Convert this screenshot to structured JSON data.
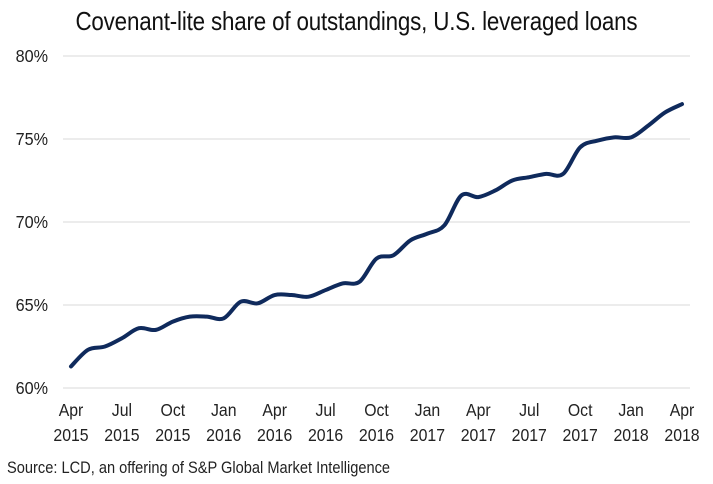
{
  "chart_data": {
    "type": "line",
    "title": "Covenant-lite share of outstandings, U.S. leveraged loans",
    "xlabel": "",
    "ylabel": "",
    "source": "Source: LCD, an offering of S&P Global Market Intelligence",
    "ylim": [
      60,
      80
    ],
    "yticks": [
      60,
      65,
      70,
      75,
      80
    ],
    "ytick_labels": [
      "60%",
      "65%",
      "70%",
      "75%",
      "80%"
    ],
    "grid": true,
    "legend": "none",
    "x_tick_labels": [
      [
        "Apr",
        "2015"
      ],
      [
        "Jul",
        "2015"
      ],
      [
        "Oct",
        "2015"
      ],
      [
        "Jan",
        "2016"
      ],
      [
        "Apr",
        "2016"
      ],
      [
        "Jul",
        "2016"
      ],
      [
        "Oct",
        "2016"
      ],
      [
        "Jan",
        "2017"
      ],
      [
        "Apr",
        "2017"
      ],
      [
        "Jul",
        "2017"
      ],
      [
        "Oct",
        "2017"
      ],
      [
        "Jan",
        "2018"
      ],
      [
        "Apr",
        "2018"
      ]
    ],
    "x": [
      "Apr 2015",
      "May 2015",
      "Jun 2015",
      "Jul 2015",
      "Aug 2015",
      "Sep 2015",
      "Oct 2015",
      "Nov 2015",
      "Dec 2015",
      "Jan 2016",
      "Feb 2016",
      "Mar 2016",
      "Apr 2016",
      "May 2016",
      "Jun 2016",
      "Jul 2016",
      "Aug 2016",
      "Sep 2016",
      "Oct 2016",
      "Nov 2016",
      "Dec 2016",
      "Jan 2017",
      "Feb 2017",
      "Mar 2017",
      "Apr 2017",
      "May 2017",
      "Jun 2017",
      "Jul 2017",
      "Aug 2017",
      "Sep 2017",
      "Oct 2017",
      "Nov 2017",
      "Dec 2017",
      "Jan 2018",
      "Feb 2018",
      "Mar 2018",
      "Apr 2018"
    ],
    "series": [
      {
        "name": "Covenant-lite share",
        "color": "#0f2a5c",
        "values": [
          61.3,
          62.3,
          62.5,
          63.0,
          63.6,
          63.5,
          64.0,
          64.3,
          64.3,
          64.2,
          65.2,
          65.1,
          65.6,
          65.6,
          65.5,
          65.9,
          66.3,
          66.4,
          67.8,
          68.0,
          68.9,
          69.3,
          69.8,
          71.6,
          71.5,
          71.9,
          72.5,
          72.7,
          72.9,
          72.9,
          74.5,
          74.9,
          75.1,
          75.1,
          75.8,
          76.6,
          77.1
        ]
      }
    ]
  },
  "colors": {
    "gridline": "#d9d9d9",
    "line": "#0f2a5c"
  }
}
